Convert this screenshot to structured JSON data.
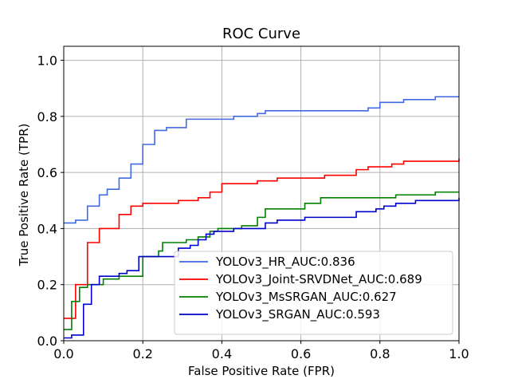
{
  "chart_data": {
    "type": "line",
    "title": "ROC Curve",
    "xlabel": "False Positive Rate (FPR)",
    "ylabel": "True Positive Rate (TPR)",
    "xlim": [
      0.0,
      1.0
    ],
    "ylim": [
      0.0,
      1.05
    ],
    "grid": true,
    "legend_position": "lower-right",
    "xticks": [
      0.0,
      0.2,
      0.4,
      0.6,
      0.8,
      1.0
    ],
    "xtick_labels": [
      "0.0",
      "0.2",
      "0.4",
      "0.6",
      "0.8",
      "1.0"
    ],
    "yticks": [
      0.0,
      0.2,
      0.4,
      0.6,
      0.8,
      1.0
    ],
    "ytick_labels": [
      "0.0",
      "0.2",
      "0.4",
      "0.6",
      "0.8",
      "1.0"
    ],
    "series": [
      {
        "name": "YOLOv3_HR_AUC:0.836",
        "color": "#4169e1",
        "points": [
          [
            0,
            0.42
          ],
          [
            0.03,
            0.42
          ],
          [
            0.03,
            0.43
          ],
          [
            0.06,
            0.43
          ],
          [
            0.06,
            0.48
          ],
          [
            0.09,
            0.48
          ],
          [
            0.09,
            0.52
          ],
          [
            0.11,
            0.52
          ],
          [
            0.11,
            0.54
          ],
          [
            0.14,
            0.54
          ],
          [
            0.14,
            0.58
          ],
          [
            0.17,
            0.58
          ],
          [
            0.17,
            0.63
          ],
          [
            0.2,
            0.63
          ],
          [
            0.2,
            0.7
          ],
          [
            0.23,
            0.7
          ],
          [
            0.23,
            0.75
          ],
          [
            0.26,
            0.75
          ],
          [
            0.26,
            0.76
          ],
          [
            0.31,
            0.76
          ],
          [
            0.31,
            0.79
          ],
          [
            0.43,
            0.79
          ],
          [
            0.43,
            0.8
          ],
          [
            0.49,
            0.8
          ],
          [
            0.49,
            0.81
          ],
          [
            0.51,
            0.81
          ],
          [
            0.51,
            0.82
          ],
          [
            0.77,
            0.82
          ],
          [
            0.77,
            0.83
          ],
          [
            0.8,
            0.83
          ],
          [
            0.8,
            0.85
          ],
          [
            0.86,
            0.85
          ],
          [
            0.86,
            0.86
          ],
          [
            0.94,
            0.86
          ],
          [
            0.94,
            0.87
          ],
          [
            1.0,
            0.87
          ]
        ]
      },
      {
        "name": "YOLOv3_Joint-SRVDNet_AUC:0.689",
        "color": "#ff0000",
        "points": [
          [
            0,
            0.08
          ],
          [
            0.03,
            0.08
          ],
          [
            0.03,
            0.2
          ],
          [
            0.06,
            0.2
          ],
          [
            0.06,
            0.35
          ],
          [
            0.09,
            0.35
          ],
          [
            0.09,
            0.4
          ],
          [
            0.14,
            0.4
          ],
          [
            0.14,
            0.45
          ],
          [
            0.17,
            0.45
          ],
          [
            0.17,
            0.48
          ],
          [
            0.2,
            0.48
          ],
          [
            0.2,
            0.49
          ],
          [
            0.29,
            0.49
          ],
          [
            0.29,
            0.5
          ],
          [
            0.34,
            0.5
          ],
          [
            0.34,
            0.51
          ],
          [
            0.37,
            0.51
          ],
          [
            0.37,
            0.53
          ],
          [
            0.4,
            0.53
          ],
          [
            0.4,
            0.56
          ],
          [
            0.49,
            0.56
          ],
          [
            0.49,
            0.57
          ],
          [
            0.54,
            0.57
          ],
          [
            0.54,
            0.58
          ],
          [
            0.66,
            0.58
          ],
          [
            0.66,
            0.59
          ],
          [
            0.74,
            0.59
          ],
          [
            0.74,
            0.61
          ],
          [
            0.77,
            0.61
          ],
          [
            0.77,
            0.62
          ],
          [
            0.83,
            0.62
          ],
          [
            0.83,
            0.63
          ],
          [
            0.86,
            0.63
          ],
          [
            0.86,
            0.64
          ],
          [
            1.0,
            0.64
          ],
          [
            1.0,
            0.65
          ]
        ]
      },
      {
        "name": "YOLOv3_MsSRGAN_AUC:0.627",
        "color": "#008000",
        "points": [
          [
            0,
            0.04
          ],
          [
            0.02,
            0.04
          ],
          [
            0.02,
            0.14
          ],
          [
            0.04,
            0.14
          ],
          [
            0.04,
            0.19
          ],
          [
            0.06,
            0.19
          ],
          [
            0.06,
            0.2
          ],
          [
            0.1,
            0.2
          ],
          [
            0.1,
            0.22
          ],
          [
            0.14,
            0.22
          ],
          [
            0.14,
            0.23
          ],
          [
            0.2,
            0.23
          ],
          [
            0.2,
            0.3
          ],
          [
            0.24,
            0.3
          ],
          [
            0.24,
            0.32
          ],
          [
            0.25,
            0.32
          ],
          [
            0.25,
            0.35
          ],
          [
            0.31,
            0.35
          ],
          [
            0.31,
            0.36
          ],
          [
            0.34,
            0.36
          ],
          [
            0.34,
            0.37
          ],
          [
            0.37,
            0.37
          ],
          [
            0.37,
            0.39
          ],
          [
            0.39,
            0.39
          ],
          [
            0.39,
            0.4
          ],
          [
            0.45,
            0.4
          ],
          [
            0.45,
            0.41
          ],
          [
            0.49,
            0.41
          ],
          [
            0.49,
            0.44
          ],
          [
            0.51,
            0.44
          ],
          [
            0.51,
            0.47
          ],
          [
            0.61,
            0.47
          ],
          [
            0.61,
            0.49
          ],
          [
            0.65,
            0.49
          ],
          [
            0.65,
            0.51
          ],
          [
            0.84,
            0.51
          ],
          [
            0.84,
            0.52
          ],
          [
            0.94,
            0.52
          ],
          [
            0.94,
            0.53
          ],
          [
            1.0,
            0.53
          ]
        ]
      },
      {
        "name": "YOLOv3_SRGAN_AUC:0.593",
        "color": "#0000cd",
        "points": [
          [
            0,
            0.01
          ],
          [
            0.02,
            0.01
          ],
          [
            0.02,
            0.02
          ],
          [
            0.05,
            0.02
          ],
          [
            0.05,
            0.13
          ],
          [
            0.07,
            0.13
          ],
          [
            0.07,
            0.2
          ],
          [
            0.09,
            0.2
          ],
          [
            0.09,
            0.23
          ],
          [
            0.14,
            0.23
          ],
          [
            0.14,
            0.24
          ],
          [
            0.16,
            0.24
          ],
          [
            0.16,
            0.25
          ],
          [
            0.19,
            0.25
          ],
          [
            0.19,
            0.3
          ],
          [
            0.29,
            0.3
          ],
          [
            0.29,
            0.33
          ],
          [
            0.32,
            0.33
          ],
          [
            0.32,
            0.34
          ],
          [
            0.34,
            0.34
          ],
          [
            0.34,
            0.36
          ],
          [
            0.36,
            0.36
          ],
          [
            0.36,
            0.38
          ],
          [
            0.38,
            0.38
          ],
          [
            0.38,
            0.39
          ],
          [
            0.43,
            0.39
          ],
          [
            0.43,
            0.4
          ],
          [
            0.51,
            0.4
          ],
          [
            0.51,
            0.42
          ],
          [
            0.54,
            0.42
          ],
          [
            0.54,
            0.43
          ],
          [
            0.61,
            0.43
          ],
          [
            0.61,
            0.44
          ],
          [
            0.74,
            0.44
          ],
          [
            0.74,
            0.46
          ],
          [
            0.79,
            0.46
          ],
          [
            0.79,
            0.47
          ],
          [
            0.81,
            0.47
          ],
          [
            0.81,
            0.48
          ],
          [
            0.84,
            0.48
          ],
          [
            0.84,
            0.49
          ],
          [
            0.89,
            0.49
          ],
          [
            0.89,
            0.5
          ],
          [
            1.0,
            0.5
          ],
          [
            1.0,
            0.51
          ]
        ]
      }
    ]
  }
}
